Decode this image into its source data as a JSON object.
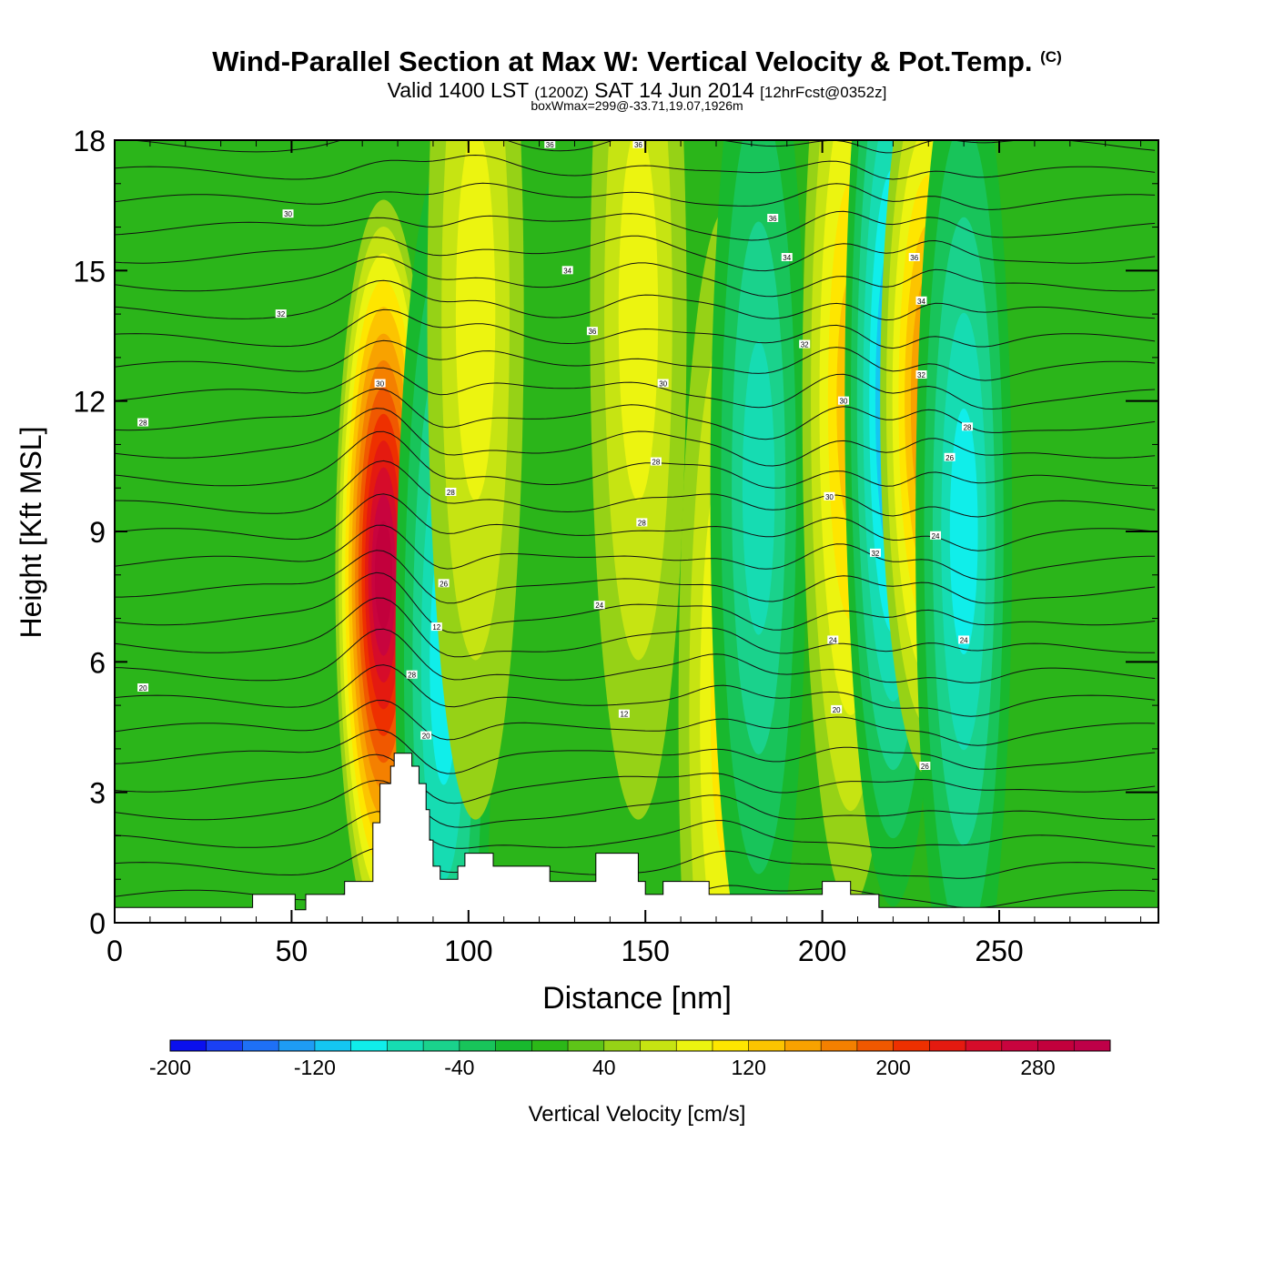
{
  "title": {
    "main": "Wind-Parallel Section at Max W: Vertical Velocity & Pot.Temp.",
    "copyright": "(C)",
    "valid_prefix": "Valid 1400 LST",
    "valid_utc": "(1200Z)",
    "valid_date": "SAT 14 Jun 2014",
    "forecast": "[12hrFcst@0352z]",
    "box_info": "boxWmax=299@-33.71,19.07,1926m"
  },
  "chart_data": {
    "type": "heatmap",
    "xlabel": "Distance [nm]",
    "ylabel": "Height [Kft MSL]",
    "xlim": [
      0,
      295
    ],
    "ylim": [
      0,
      18
    ],
    "x_ticks": [
      0,
      50,
      100,
      150,
      200,
      250
    ],
    "y_ticks": [
      0,
      3,
      6,
      9,
      12,
      15,
      18
    ],
    "colorbar": {
      "label": "Vertical Velocity [cm/s]",
      "min": -200,
      "max": 320,
      "step": 20,
      "tick_values": [
        -200,
        -120,
        -40,
        40,
        120,
        200,
        280
      ],
      "tick_labels": [
        "-200",
        "-120",
        "-40",
        "40",
        "120",
        "200",
        "280"
      ],
      "colors": [
        "#0a10ee",
        "#1a40f4",
        "#1e70f6",
        "#1e9cf4",
        "#14c6f2",
        "#10eeea",
        "#16dcb2",
        "#1ad28c",
        "#18c45a",
        "#18b82e",
        "#2cb818",
        "#5ec418",
        "#96d216",
        "#c6e412",
        "#ecf410",
        "#fee600",
        "#fcc400",
        "#f8a200",
        "#f48000",
        "#f05800",
        "#ee3000",
        "#e41a10",
        "#d60c2a",
        "#c8043e",
        "#c2003c",
        "#be0048"
      ]
    },
    "velocity_features": [
      {
        "distance": 76,
        "height_center": 8.0,
        "peak_cm_s": 299
      },
      {
        "distance": 93,
        "height_center": 6.0,
        "peak_cm_s": -100
      },
      {
        "distance": 102,
        "height_center": 14.0,
        "peak_cm_s": 80
      },
      {
        "distance": 148,
        "height_center": 14.0,
        "peak_cm_s": 80
      },
      {
        "distance": 173,
        "height_center": 4.8,
        "peak_cm_s": 100
      },
      {
        "distance": 182,
        "height_center": 10.0,
        "peak_cm_s": -80
      },
      {
        "distance": 208,
        "height_center": 12.0,
        "peak_cm_s": 120
      },
      {
        "distance": 220,
        "height_center": 12.0,
        "peak_cm_s": -140
      },
      {
        "distance": 230,
        "height_center": 12.0,
        "peak_cm_s": 160
      },
      {
        "distance": 240,
        "height_center": 9.0,
        "peak_cm_s": -100
      }
    ],
    "terrain_kft": [
      [
        0,
        0.35
      ],
      [
        39,
        0.35
      ],
      [
        39,
        0.65
      ],
      [
        51,
        0.65
      ],
      [
        51,
        0.3
      ],
      [
        54,
        0.3
      ],
      [
        54,
        0.65
      ],
      [
        65,
        0.65
      ],
      [
        65,
        0.95
      ],
      [
        73,
        0.95
      ],
      [
        73,
        2.3
      ],
      [
        75,
        2.3
      ],
      [
        75,
        3.2
      ],
      [
        78,
        3.2
      ],
      [
        78,
        3.6
      ],
      [
        79,
        3.6
      ],
      [
        79,
        3.9
      ],
      [
        84,
        3.9
      ],
      [
        84,
        3.6
      ],
      [
        86,
        3.6
      ],
      [
        86,
        3.2
      ],
      [
        88,
        3.2
      ],
      [
        88,
        2.6
      ],
      [
        89,
        2.6
      ],
      [
        89,
        1.9
      ],
      [
        90,
        1.9
      ],
      [
        90,
        1.3
      ],
      [
        92,
        1.3
      ],
      [
        92,
        1.0
      ],
      [
        97,
        1.0
      ],
      [
        97,
        1.3
      ],
      [
        99,
        1.3
      ],
      [
        99,
        1.6
      ],
      [
        107,
        1.6
      ],
      [
        107,
        1.3
      ],
      [
        123,
        1.3
      ],
      [
        123,
        0.95
      ],
      [
        136,
        0.95
      ],
      [
        136,
        1.6
      ],
      [
        148,
        1.6
      ],
      [
        148,
        0.95
      ],
      [
        150,
        0.95
      ],
      [
        150,
        0.65
      ],
      [
        155,
        0.65
      ],
      [
        155,
        0.95
      ],
      [
        168,
        0.95
      ],
      [
        168,
        0.65
      ],
      [
        200,
        0.65
      ],
      [
        200,
        0.95
      ],
      [
        208,
        0.95
      ],
      [
        208,
        0.65
      ],
      [
        216,
        0.65
      ],
      [
        216,
        0.35
      ],
      [
        295,
        0.35
      ]
    ],
    "isentrope_labels": [
      {
        "x": 8,
        "y": 11.5,
        "text": "28"
      },
      {
        "x": 8,
        "y": 5.4,
        "text": "20"
      },
      {
        "x": 47,
        "y": 14.0,
        "text": "32"
      },
      {
        "x": 49,
        "y": 16.3,
        "text": "30"
      },
      {
        "x": 75,
        "y": 12.4,
        "text": "30"
      },
      {
        "x": 84,
        "y": 5.7,
        "text": "28"
      },
      {
        "x": 88,
        "y": 4.3,
        "text": "20"
      },
      {
        "x": 91,
        "y": 6.8,
        "text": "12"
      },
      {
        "x": 93,
        "y": 7.8,
        "text": "26"
      },
      {
        "x": 95,
        "y": 9.9,
        "text": "28"
      },
      {
        "x": 123,
        "y": 17.9,
        "text": "36"
      },
      {
        "x": 128,
        "y": 15.0,
        "text": "34"
      },
      {
        "x": 135,
        "y": 13.6,
        "text": "36"
      },
      {
        "x": 137,
        "y": 7.3,
        "text": "24"
      },
      {
        "x": 144,
        "y": 4.8,
        "text": "12"
      },
      {
        "x": 148,
        "y": 17.9,
        "text": "36"
      },
      {
        "x": 149,
        "y": 9.2,
        "text": "28"
      },
      {
        "x": 153,
        "y": 10.6,
        "text": "28"
      },
      {
        "x": 155,
        "y": 12.4,
        "text": "30"
      },
      {
        "x": 186,
        "y": 16.2,
        "text": "36"
      },
      {
        "x": 190,
        "y": 15.3,
        "text": "34"
      },
      {
        "x": 195,
        "y": 13.3,
        "text": "32"
      },
      {
        "x": 202,
        "y": 9.8,
        "text": "30"
      },
      {
        "x": 203,
        "y": 6.5,
        "text": "24"
      },
      {
        "x": 204,
        "y": 4.9,
        "text": "20"
      },
      {
        "x": 206,
        "y": 12.0,
        "text": "30"
      },
      {
        "x": 215,
        "y": 8.5,
        "text": "32"
      },
      {
        "x": 226,
        "y": 15.3,
        "text": "36"
      },
      {
        "x": 228,
        "y": 14.3,
        "text": "34"
      },
      {
        "x": 228,
        "y": 12.6,
        "text": "32"
      },
      {
        "x": 229,
        "y": 3.6,
        "text": "26"
      },
      {
        "x": 232,
        "y": 8.9,
        "text": "24"
      },
      {
        "x": 236,
        "y": 10.7,
        "text": "26"
      },
      {
        "x": 240,
        "y": 6.5,
        "text": "24"
      },
      {
        "x": 241,
        "y": 11.4,
        "text": "28"
      }
    ]
  }
}
